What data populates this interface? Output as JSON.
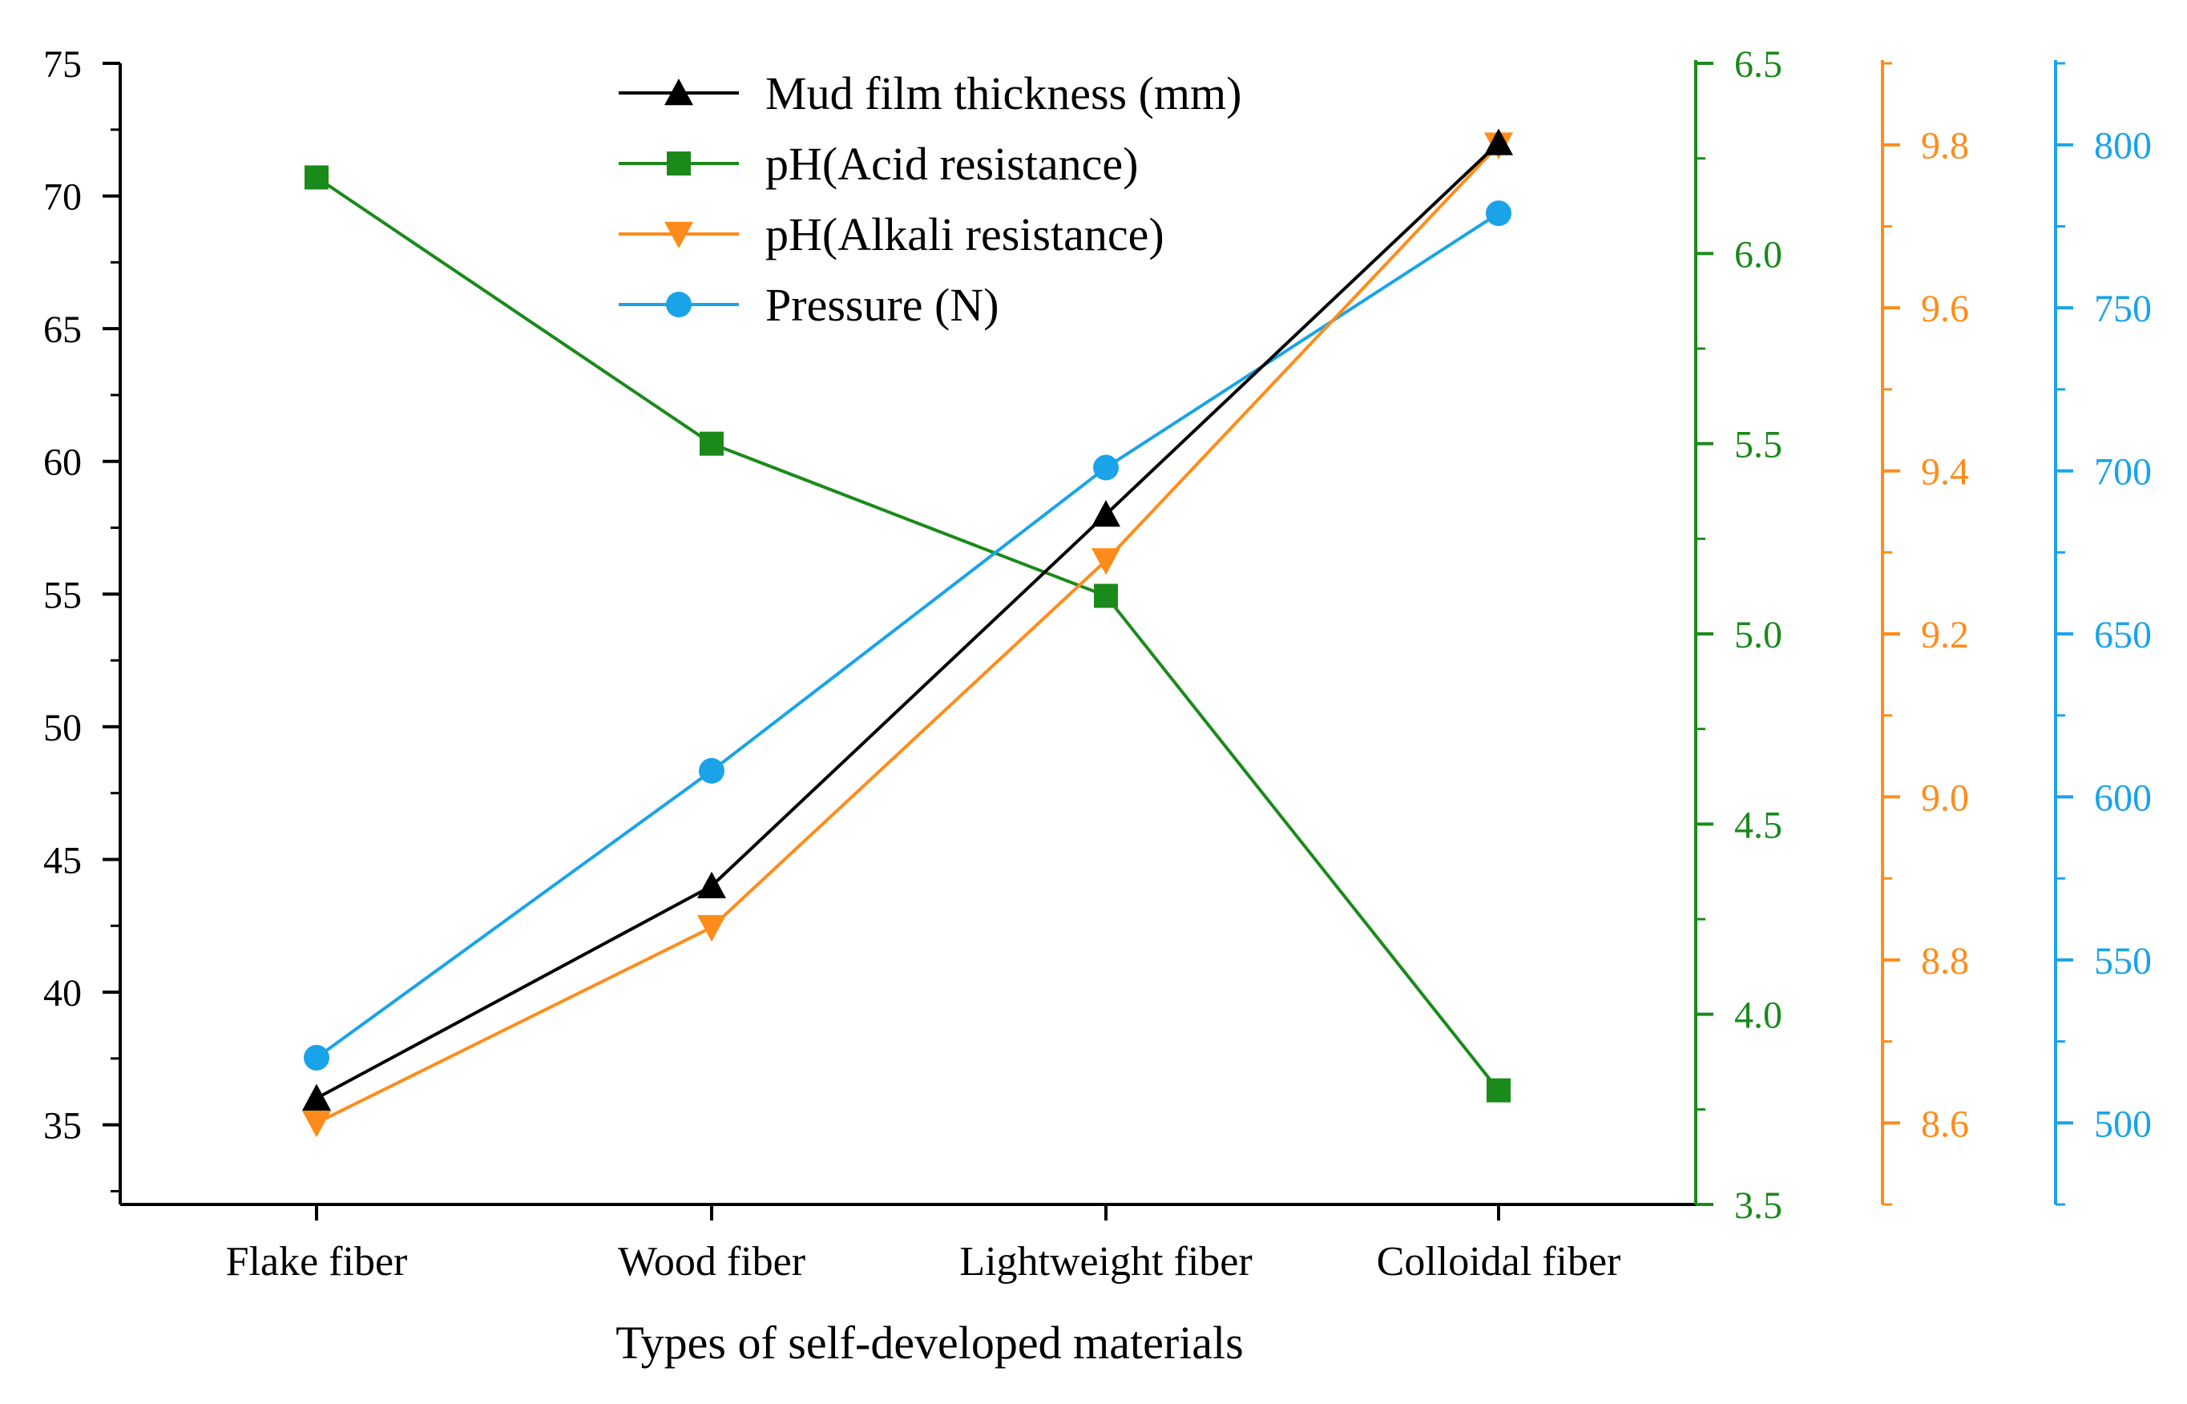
{
  "chart_data": {
    "type": "line",
    "categories": [
      "Flake fiber",
      "Wood fiber",
      "Lightweight fiber",
      "Colloidal fiber"
    ],
    "xlabel": "Types of self-developed materials",
    "axes": {
      "left": {
        "range": [
          32,
          75
        ],
        "ticks": [
          35,
          40,
          45,
          50,
          55,
          60,
          65,
          70,
          75
        ],
        "ticklabels": [
          "35",
          "40",
          "45",
          "50",
          "55",
          "60",
          "65",
          "70",
          "75"
        ],
        "minor_step": 2.5,
        "color": "#000000"
      },
      "acid": {
        "range": [
          3.5,
          6.5
        ],
        "ticks": [
          3.5,
          4.0,
          4.5,
          5.0,
          5.5,
          6.0,
          6.5
        ],
        "ticklabels": [
          "3.5",
          "4.0",
          "4.5",
          "5.0",
          "5.5",
          "6.0",
          "6.5"
        ],
        "minor_step": 0.25,
        "color": "#1a8a1a"
      },
      "alkali": {
        "range": [
          8.5,
          9.9
        ],
        "ticks": [
          8.6,
          8.8,
          9.0,
          9.2,
          9.4,
          9.6,
          9.8
        ],
        "ticklabels": [
          "8.6",
          "8.8",
          "9.0",
          "9.2",
          "9.4",
          "9.6",
          "9.8"
        ],
        "minor_step": 0.1,
        "color": "#ff8c1a"
      },
      "pressure": {
        "range": [
          475,
          825
        ],
        "ticks": [
          500,
          550,
          600,
          650,
          700,
          750,
          800
        ],
        "ticklabels": [
          "500",
          "550",
          "600",
          "650",
          "700",
          "750",
          "800"
        ],
        "minor_step": 25,
        "color": "#1aa3e8"
      }
    },
    "series": [
      {
        "name": "Mud film thickness (mm)",
        "axis": "left",
        "marker": "triangle-up",
        "color": "#000000",
        "values": [
          36,
          44,
          58,
          72
        ]
      },
      {
        "name": "pH(Acid resistance)",
        "axis": "acid",
        "marker": "square",
        "color": "#1a8a1a",
        "values": [
          6.2,
          5.5,
          5.1,
          3.8
        ]
      },
      {
        "name": "pH(Alkali resistance)",
        "axis": "alkali",
        "marker": "triangle-down",
        "color": "#ff8c1a",
        "values": [
          8.6,
          8.84,
          9.29,
          9.8
        ]
      },
      {
        "name": "Pressure (N)",
        "axis": "pressure",
        "marker": "circle",
        "color": "#1aa3e8",
        "values": [
          520,
          608,
          701,
          779
        ]
      }
    ],
    "legend_position": "top-center"
  }
}
